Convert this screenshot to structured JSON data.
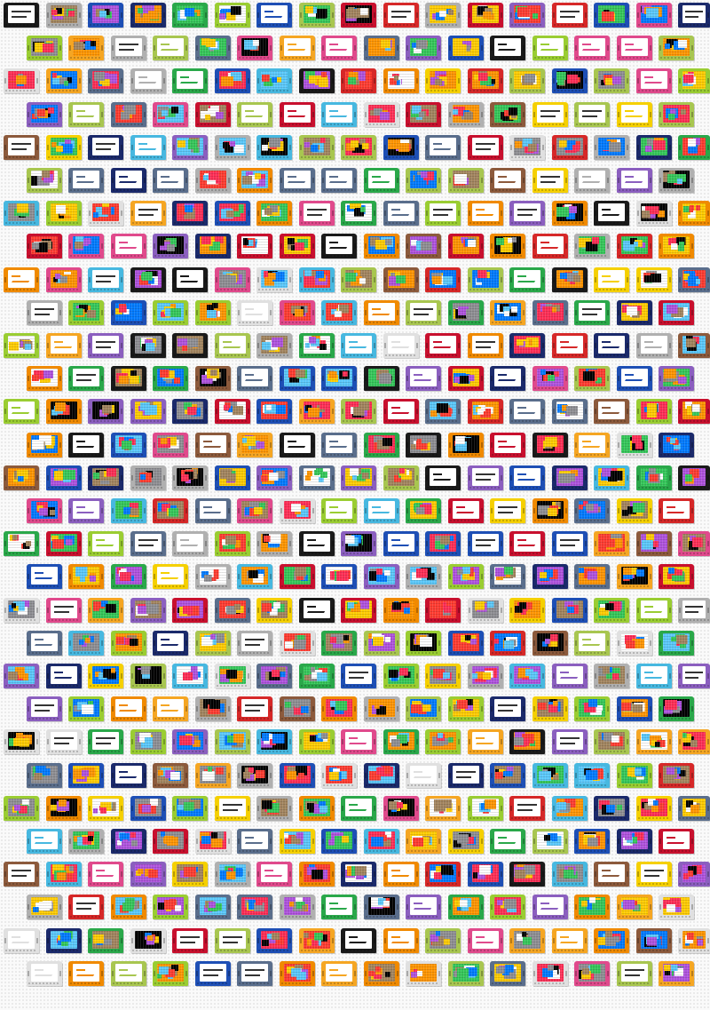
{
  "pattern": {
    "description_visible": false,
    "palette": [
      "#1a1a1a",
      "#d62828",
      "#1e4fb5",
      "#2aa84a",
      "#f5d000",
      "#f08a00",
      "#8b5fbf",
      "#e0e0e0",
      "#47b8e0",
      "#a8c650",
      "#8c5a3c",
      "#e04a8c",
      "#f5a623",
      "#5a6e8c",
      "#b0b0b0",
      "#c8102e",
      "#1b2a6b",
      "#9acd32"
    ],
    "label_palette": [
      "#ff3b30",
      "#ffcc00",
      "#34c759",
      "#007aff",
      "#ff9500",
      "#af52de",
      "#ffffff",
      "#000000",
      "#5ac8fa",
      "#ff2d55",
      "#8e8e93",
      "#a2845e"
    ],
    "variants": [
      "pixel",
      "logo",
      "text"
    ]
  }
}
